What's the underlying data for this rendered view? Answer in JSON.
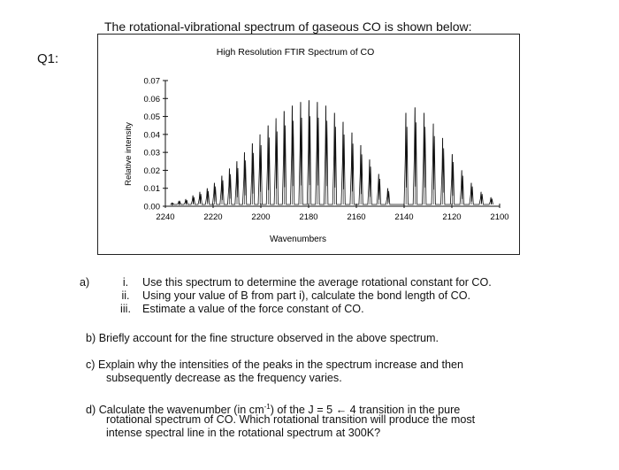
{
  "question_number": "Q1:",
  "intro": "The rotational-vibrational spectrum of gaseous CO is shown below:",
  "chart_data": {
    "type": "line",
    "title": "High Resolution FTIR Spectrum of CO",
    "xlabel": "Wavenumbers",
    "ylabel": "Relative intensity",
    "xlim": [
      2240,
      2100
    ],
    "ylim": [
      0,
      0.07
    ],
    "x_reversed": true,
    "xticks": [
      "2240",
      "2220",
      "2200",
      "2180",
      "2160",
      "2140",
      "2120",
      "2100"
    ],
    "yticks": [
      "0.00",
      "0.01",
      "0.02",
      "0.03",
      "0.04",
      "0.05",
      "0.06",
      "0.07"
    ],
    "series": [
      {
        "branch": "R",
        "line_spacing_cm": 3.84,
        "origin": 2143,
        "x": [
          2146.8,
          2150.6,
          2154.4,
          2158.1,
          2161.8,
          2165.5,
          2169.1,
          2172.7,
          2176.3,
          2179.8,
          2183.3,
          2186.8,
          2190.2,
          2193.6,
          2196.9,
          2200.3,
          2203.5,
          2206.8,
          2210.0,
          2213.1,
          2216.3,
          2219.4,
          2222.4,
          2225.5,
          2228.4,
          2231.4,
          2234.3,
          2237.2
        ],
        "y": [
          0.01,
          0.018,
          0.026,
          0.034,
          0.041,
          0.047,
          0.052,
          0.056,
          0.058,
          0.059,
          0.058,
          0.056,
          0.053,
          0.049,
          0.045,
          0.04,
          0.035,
          0.03,
          0.025,
          0.021,
          0.017,
          0.013,
          0.01,
          0.008,
          0.006,
          0.004,
          0.003,
          0.002
        ]
      },
      {
        "branch": "P",
        "line_spacing_cm": 3.84,
        "x": [
          2139.2,
          2135.4,
          2131.6,
          2127.7,
          2123.8,
          2119.8,
          2115.8,
          2111.8,
          2107.7,
          2103.6
        ],
        "y": [
          0.052,
          0.055,
          0.052,
          0.046,
          0.038,
          0.029,
          0.02,
          0.013,
          0.008,
          0.005
        ]
      }
    ]
  },
  "questions": {
    "a_label": "a)",
    "a_items": [
      {
        "num": "i.",
        "text": "Use this spectrum to determine the average rotational constant for CO."
      },
      {
        "num": "ii.",
        "text": "Using your value of B from part i), calculate the bond length of CO."
      },
      {
        "num": "iii.",
        "text": "Estimate a value of the force constant of CO."
      }
    ],
    "b": "b)  Briefly account for the fine structure observed in the above spectrum.",
    "c_line1": "c)  Explain why the intensities of the peaks in the spectrum increase and then",
    "c_line2": "subsequently decrease as the frequency varies.",
    "d_line1_pre": "d)  Calculate the wavenumber (in cm",
    "d_line1_sup": "-1",
    "d_line1_post": ") of the J = 5 ← 4 transition in the pure",
    "d_line2": "rotational spectrum of CO. Which rotational transition will produce the most",
    "d_line3": "intense spectral line in the rotational spectrum at 300K?"
  }
}
